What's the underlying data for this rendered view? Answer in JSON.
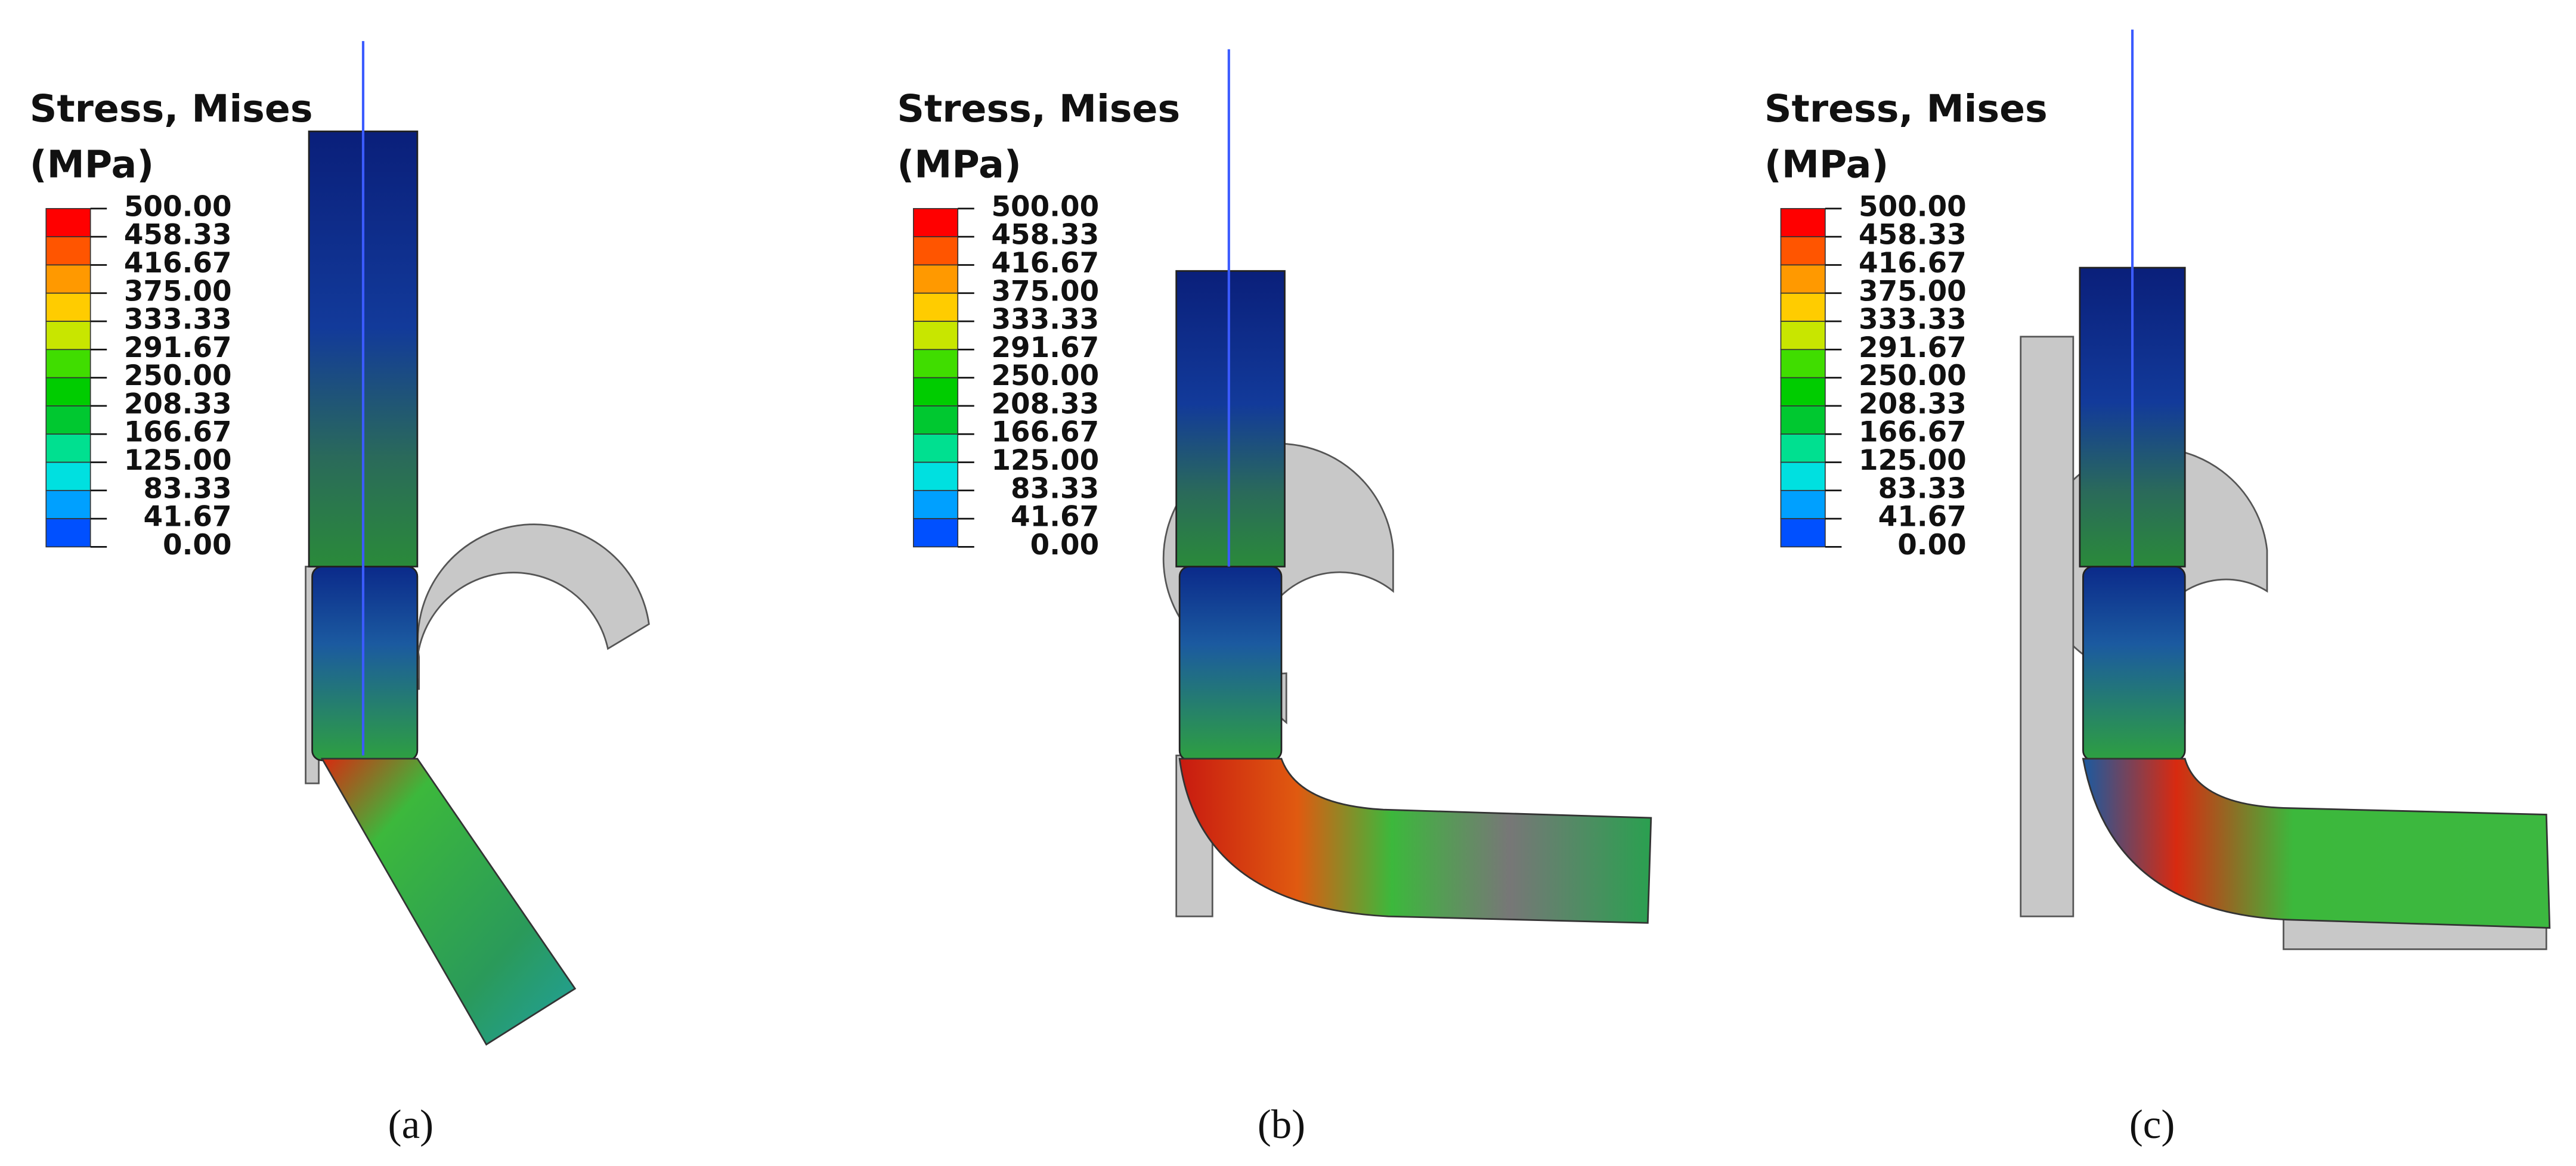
{
  "panels": [
    {
      "legend": {
        "title": "Stress, Mises",
        "unit": "(MPa)",
        "labels": [
          "500.00",
          "458.33",
          "416.67",
          "375.00",
          "333.33",
          "291.67",
          "250.00",
          "208.33",
          "166.67",
          "125.00",
          "83.33",
          "41.67",
          "0.00"
        ]
      },
      "caption": "(a)"
    },
    {
      "legend": {
        "title": "Stress, Mises",
        "unit": "(MPa)",
        "labels": [
          "500.00",
          "458.33",
          "416.67",
          "375.00",
          "333.33",
          "291.67",
          "250.00",
          "208.33",
          "166.67",
          "125.00",
          "83.33",
          "41.67",
          "0.00"
        ]
      },
      "caption": "(b)"
    },
    {
      "legend": {
        "title": "Stress, Mises",
        "unit": "(MPa)",
        "labels": [
          "500.00",
          "458.33",
          "416.67",
          "375.00",
          "333.33",
          "291.67",
          "250.00",
          "208.33",
          "166.67",
          "125.00",
          "83.33",
          "41.67",
          "0.00"
        ]
      },
      "caption": "(c)"
    }
  ]
}
